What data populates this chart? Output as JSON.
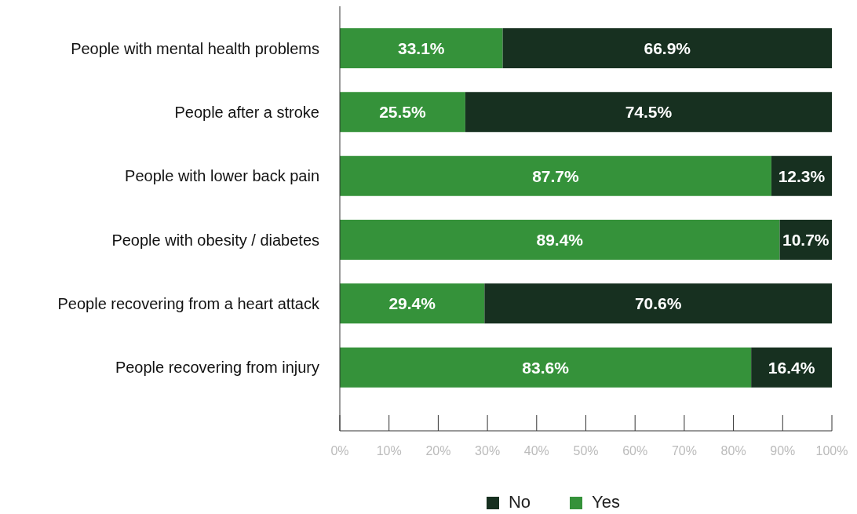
{
  "chart_data": {
    "type": "bar",
    "orientation": "horizontal",
    "stacked": true,
    "categories": [
      "People with mental health problems",
      "People after a stroke",
      "People with lower back pain",
      "People with obesity / diabetes",
      "People recovering from a heart attack",
      "People recovering from injury"
    ],
    "series": [
      {
        "name": "Yes",
        "color": "#35923a",
        "values": [
          33.1,
          25.5,
          87.7,
          89.4,
          29.4,
          83.6
        ],
        "value_labels": [
          "33.1%",
          "25.5%",
          "87.7%",
          "89.4%",
          "29.4%",
          "83.6%"
        ]
      },
      {
        "name": "No",
        "color": "#173020",
        "values": [
          66.9,
          74.5,
          12.3,
          10.7,
          70.6,
          16.4
        ],
        "value_labels": [
          "66.9%",
          "74.5%",
          "12.3%",
          "10.7%",
          "70.6%",
          "16.4%"
        ]
      }
    ],
    "xlim": [
      0,
      100
    ],
    "xticks": [
      {
        "value": 0,
        "label": "0%"
      },
      {
        "value": 10,
        "label": "10%"
      },
      {
        "value": 20,
        "label": "20%"
      },
      {
        "value": 30,
        "label": "30%"
      },
      {
        "value": 40,
        "label": "40%"
      },
      {
        "value": 50,
        "label": "50%"
      },
      {
        "value": 60,
        "label": "60%"
      },
      {
        "value": 70,
        "label": "70%"
      },
      {
        "value": 80,
        "label": "80%"
      },
      {
        "value": 90,
        "label": "90%"
      },
      {
        "value": 100,
        "label": "100%"
      }
    ],
    "legend": "bottom"
  }
}
